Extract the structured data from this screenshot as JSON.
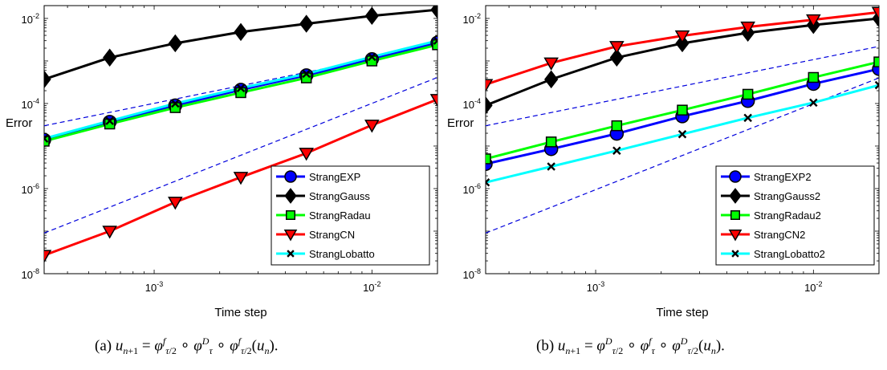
{
  "chart_data": [
    {
      "type": "line",
      "xscale": "log",
      "yscale": "log",
      "xlim": [
        0.0003125,
        0.02
      ],
      "ylim": [
        1e-08,
        0.02
      ],
      "xlabel": "Time step",
      "ylabel": "Error",
      "xticks": [
        "10^-3",
        "10^-2"
      ],
      "yticks": [
        "10^-8",
        "10^-6",
        "10^-4",
        "10^-2"
      ],
      "legend_position": "bottom-right",
      "caption": "(a) u_{n+1} = φ^f_{τ/2} ∘ φ^D_τ ∘ φ^f_{τ/2}(u_n).",
      "x": [
        0.0003125,
        0.000625,
        0.00125,
        0.0025,
        0.005,
        0.01,
        0.02
      ],
      "series": [
        {
          "name": "StrangEXP",
          "color": "#0000ff",
          "marker": "circle",
          "values": [
            1.4e-05,
            3.7e-05,
            9e-05,
            0.00021,
            0.00046,
            0.0011,
            0.0027
          ]
        },
        {
          "name": "StrangGauss",
          "color": "#000000",
          "marker": "diamond",
          "values": [
            0.00037,
            0.0012,
            0.0026,
            0.0048,
            0.0075,
            0.0115,
            0.016
          ]
        },
        {
          "name": "StrangRadau",
          "color": "#00ff00",
          "marker": "square",
          "values": [
            1.3e-05,
            3.3e-05,
            8e-05,
            0.00018,
            0.0004,
            0.001,
            0.0024
          ]
        },
        {
          "name": "StrangCN",
          "color": "#ff0000",
          "marker": "triangle-down",
          "values": [
            2.7e-08,
            1e-07,
            4.8e-07,
            1.85e-06,
            6.8e-06,
            3.1e-05,
            0.000125
          ]
        },
        {
          "name": "StrangLobatto",
          "color": "#00ffff",
          "marker": "x",
          "values": [
            1.5e-05,
            3.9e-05,
            0.0001,
            0.00023,
            0.0005,
            0.00125,
            0.003
          ]
        }
      ],
      "reference_lines": [
        {
          "style": "dashed",
          "color": "#0000dd",
          "x": [
            0.0003125,
            0.02
          ],
          "values": [
            3e-05,
            0.0023
          ]
        },
        {
          "style": "dashed",
          "color": "#0000dd",
          "x": [
            0.0003125,
            0.02
          ],
          "values": [
            9e-08,
            0.00041
          ]
        }
      ]
    },
    {
      "type": "line",
      "xscale": "log",
      "yscale": "log",
      "xlim": [
        0.0003125,
        0.02
      ],
      "ylim": [
        1e-08,
        0.02
      ],
      "xlabel": "Time step",
      "ylabel": "Error",
      "xticks": [
        "10^-3",
        "10^-2"
      ],
      "yticks": [
        "10^-8",
        "10^-6",
        "10^-4",
        "10^-2"
      ],
      "legend_position": "bottom-right",
      "caption": "(b) u_{n+1} = φ^D_{τ/2} ∘ φ^f_τ ∘ φ^D_{τ/2}(u_n).",
      "x": [
        0.0003125,
        0.000625,
        0.00125,
        0.0025,
        0.005,
        0.01,
        0.02
      ],
      "series": [
        {
          "name": "StrangEXP2",
          "color": "#0000ff",
          "marker": "circle",
          "values": [
            3.8e-06,
            8.5e-06,
            1.95e-05,
            5e-05,
            0.000115,
            0.00029,
            0.00065
          ]
        },
        {
          "name": "StrangGauss2",
          "color": "#000000",
          "marker": "diamond",
          "values": [
            9e-05,
            0.00037,
            0.0012,
            0.0026,
            0.0046,
            0.007,
            0.01
          ]
        },
        {
          "name": "StrangRadau2",
          "color": "#00ff00",
          "marker": "square",
          "values": [
            5e-06,
            1.25e-05,
            3e-05,
            7e-05,
            0.000165,
            0.00041,
            0.00095
          ]
        },
        {
          "name": "StrangCN2",
          "color": "#ff0000",
          "marker": "triangle-down",
          "values": [
            0.00028,
            0.0009,
            0.0022,
            0.0039,
            0.0063,
            0.0093,
            0.014
          ]
        },
        {
          "name": "StrangLobatto2",
          "color": "#00ffff",
          "marker": "x",
          "values": [
            1.4e-06,
            3.3e-06,
            7.8e-06,
            1.9e-05,
            4.6e-05,
            0.000105,
            0.00027
          ]
        }
      ],
      "reference_lines": [
        {
          "style": "dashed",
          "color": "#0000dd",
          "x": [
            0.0003125,
            0.02
          ],
          "values": [
            3e-05,
            0.0022
          ]
        },
        {
          "style": "dashed",
          "color": "#0000dd",
          "x": [
            0.0003125,
            0.02
          ],
          "values": [
            9e-08,
            0.0004
          ]
        }
      ]
    }
  ]
}
